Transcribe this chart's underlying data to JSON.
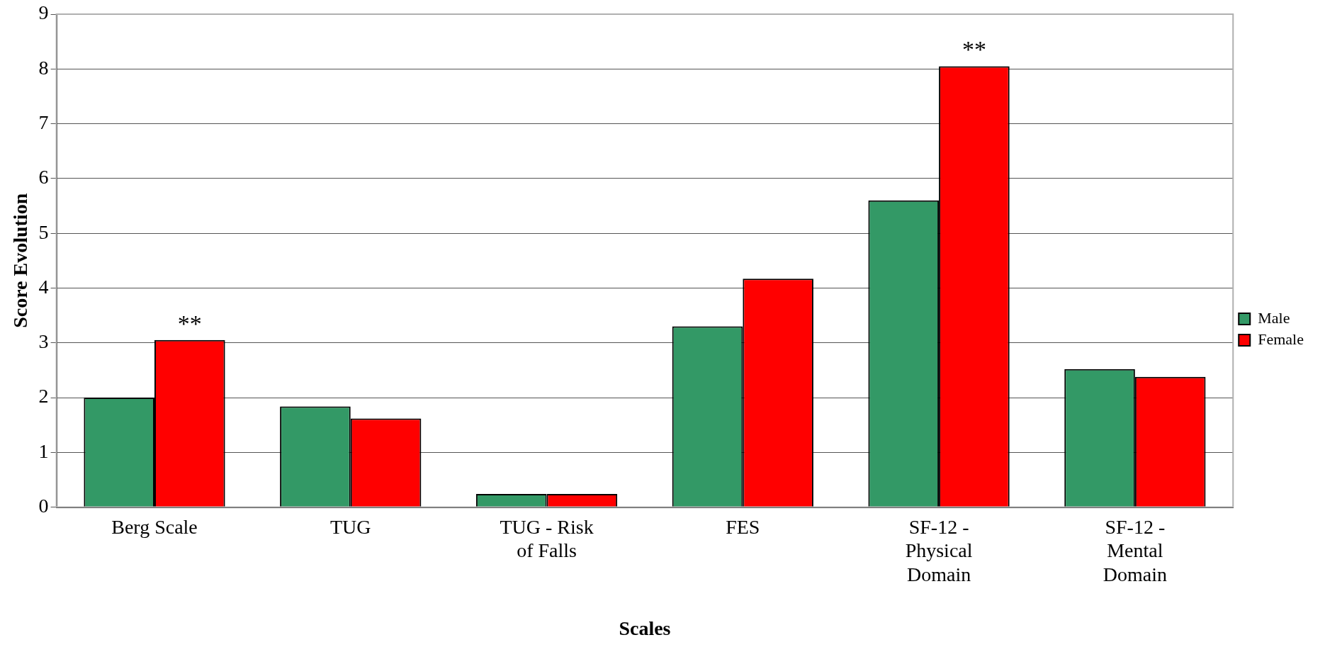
{
  "chart_data": {
    "type": "bar",
    "xlabel": "Scales",
    "ylabel": "Score Evolution",
    "categories": [
      "Berg Scale",
      "TUG",
      "TUG - Risk of Falls",
      "FES",
      "SF-12 - Physical Domain",
      "SF-12 - Mental Domain"
    ],
    "series": [
      {
        "name": "Male",
        "color": "#339966",
        "values": [
          2.0,
          1.84,
          0.24,
          3.3,
          5.6,
          2.52
        ]
      },
      {
        "name": "Female",
        "color": "#ff0000",
        "values": [
          3.05,
          1.62,
          0.24,
          4.17,
          8.05,
          2.38
        ],
        "value_labels": [
          "**",
          null,
          null,
          null,
          "**",
          null
        ]
      }
    ],
    "ylim": [
      0,
      9
    ],
    "yticks": [
      0,
      1,
      2,
      3,
      4,
      5,
      6,
      7,
      8,
      9
    ],
    "grid": "y",
    "legend": "right"
  }
}
